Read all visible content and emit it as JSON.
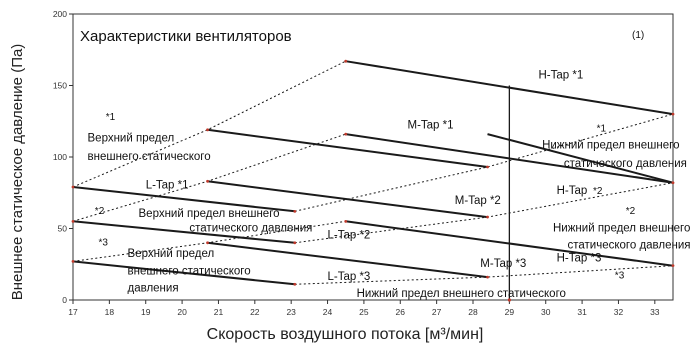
{
  "chart_data": {
    "type": "line",
    "title": "Характеристики вентиляторов",
    "note": "(1)",
    "xlabel": "Скорость воздушного потока [м³/мин]",
    "ylabel": "Внешнее статическое давление (Па)",
    "xlim": [
      17,
      33.5
    ],
    "ylim": [
      0,
      200
    ],
    "x_ticks": [
      "17",
      "18",
      "19",
      "20",
      "21",
      "22",
      "23",
      "24",
      "25",
      "26",
      "27",
      "28",
      "29",
      "30",
      "31",
      "32",
      "33"
    ],
    "y_ticks": [
      "0",
      "50",
      "100",
      "150",
      "200"
    ],
    "grid": false,
    "series": [
      {
        "name": "H-Tap *1",
        "style": "solid",
        "x": [
          24.5,
          33.5
        ],
        "y": [
          167,
          130
        ]
      },
      {
        "name": "M-Tap *1",
        "style": "solid",
        "x": [
          20.7,
          28.4
        ],
        "y": [
          119,
          93
        ]
      },
      {
        "name": "L-Tap *1",
        "style": "solid",
        "x": [
          17,
          23.1
        ],
        "y": [
          79,
          62
        ]
      },
      {
        "name": "",
        "style": "solid",
        "x": [
          28.4,
          33.5
        ],
        "y": [
          116,
          82
        ]
      },
      {
        "name": "",
        "style": "solid",
        "x": [
          24.5,
          33.5
        ],
        "y": [
          116,
          82
        ]
      },
      {
        "name": "H-Tap *2",
        "style": "solid",
        "x": [
          20.7,
          28.4
        ],
        "y": [
          83,
          58
        ]
      },
      {
        "name": "M-Tap *2",
        "style": "solid",
        "x": [
          17,
          23.1
        ],
        "y": [
          55,
          40
        ]
      },
      {
        "name": "L-Tap *2",
        "style": "solid",
        "x": [
          24.5,
          33.5
        ],
        "y": [
          55,
          24
        ]
      },
      {
        "name": "H-Tap *3",
        "style": "solid",
        "x": [
          20.7,
          28.4
        ],
        "y": [
          40,
          16
        ]
      },
      {
        "name": "M-Tap *3",
        "style": "solid",
        "x": [
          17,
          23.1
        ],
        "y": [
          27,
          11
        ]
      },
      {
        "name": "L-Tap *3",
        "style": "dotted",
        "x": [
          17,
          20.7,
          24.5
        ],
        "y": [
          79,
          119,
          167
        ]
      },
      {
        "name": "",
        "style": "dotted",
        "x": [
          17,
          20.7,
          24.5
        ],
        "y": [
          55,
          83,
          116
        ]
      },
      {
        "name": "",
        "style": "dotted",
        "x": [
          17,
          20.7,
          24.5
        ],
        "y": [
          27,
          40,
          55
        ]
      },
      {
        "name": "",
        "style": "dotted",
        "x": [
          23.1,
          28.4,
          33.5
        ],
        "y": [
          62,
          93,
          130
        ]
      },
      {
        "name": "",
        "style": "dotted",
        "x": [
          23.1,
          28.4,
          33.5
        ],
        "y": [
          40,
          58,
          82
        ]
      },
      {
        "name": "",
        "style": "dotted",
        "x": [
          23.1,
          28.4,
          33.5
        ],
        "y": [
          11,
          16,
          24
        ]
      }
    ],
    "vertical_marker": {
      "x": 29,
      "y": [
        0,
        150
      ]
    },
    "labels": [
      {
        "text": "H-Tap *1",
        "x": 29.8,
        "y": 155
      },
      {
        "text": "M-Tap *1",
        "x": 26.2,
        "y": 120
      },
      {
        "text": "L-Tap *1",
        "x": 19,
        "y": 78
      },
      {
        "text": "M-Tap *2",
        "x": 27.5,
        "y": 67
      },
      {
        "text": "L-Tap *2",
        "x": 24,
        "y": 43
      },
      {
        "text": "H-Tap *3",
        "x": 30.3,
        "y": 27
      },
      {
        "text": "M-Tap *3",
        "x": 28.2,
        "y": 23
      },
      {
        "text": "L-Tap *3",
        "x": 24,
        "y": 14
      },
      {
        "text": "*1",
        "x": 17.9,
        "y": 126
      },
      {
        "text": "Верхний предел",
        "x": 17.4,
        "y": 111
      },
      {
        "text": "внешнего статического",
        "x": 17.4,
        "y": 98
      },
      {
        "text": "*2",
        "x": 17.6,
        "y": 60
      },
      {
        "text": "Верхний предел внешнего",
        "x": 18.8,
        "y": 58
      },
      {
        "text": "статического давления",
        "x": 20.2,
        "y": 48
      },
      {
        "text": "*3",
        "x": 17.7,
        "y": 38
      },
      {
        "text": "Верхний предел",
        "x": 18.5,
        "y": 30
      },
      {
        "text": "внешнего статического",
        "x": 18.5,
        "y": 18
      },
      {
        "text": "давления",
        "x": 18.5,
        "y": 6
      },
      {
        "text": "*1",
        "x": 31.4,
        "y": 118
      },
      {
        "text": "Нижний предел внешнего",
        "x": 29.9,
        "y": 106
      },
      {
        "text": "статического давления",
        "x": 30.5,
        "y": 93
      },
      {
        "text": "H-Tap",
        "x": 30.3,
        "y": 74
      },
      {
        "text": "*2",
        "x": 31.3,
        "y": 74
      },
      {
        "text": "*2",
        "x": 32.2,
        "y": 60
      },
      {
        "text": "Нижний предел внешнего",
        "x": 30.2,
        "y": 48
      },
      {
        "text": "статического давления",
        "x": 30.6,
        "y": 36
      },
      {
        "text": "*3",
        "x": 31.9,
        "y": 15
      },
      {
        "text": "Нижний предел внешнего статического",
        "x": 24.8,
        "y": 2
      }
    ]
  }
}
